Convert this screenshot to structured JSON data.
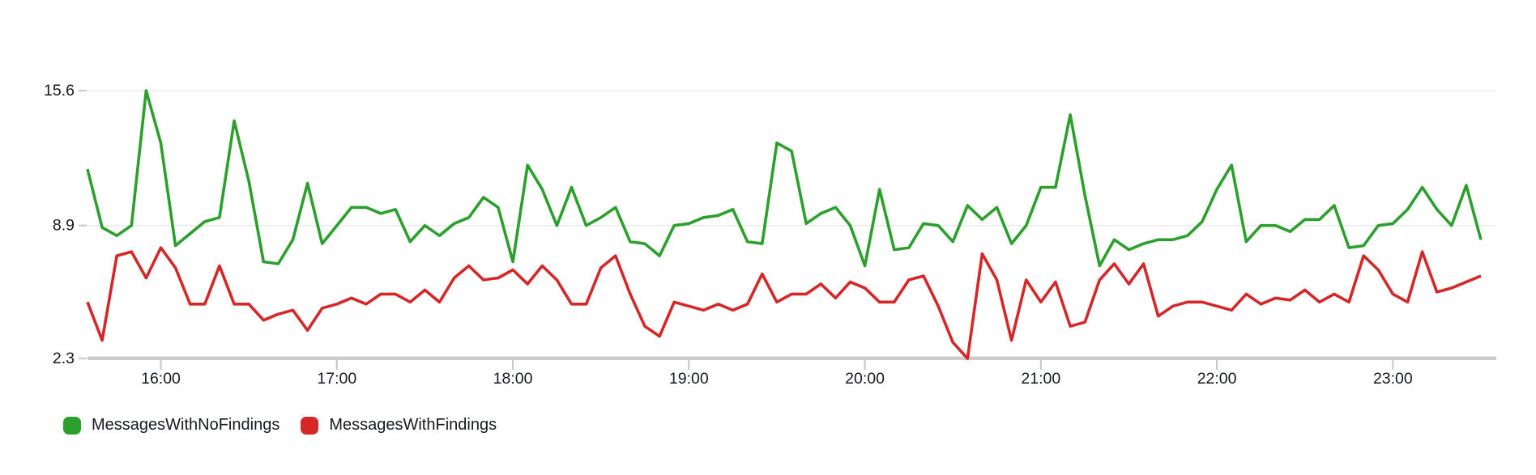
{
  "chart_data": {
    "type": "line",
    "title": "",
    "grid": "horizontal-only",
    "legend_position": "bottom-left",
    "x_axis": {
      "start_time": "15:35",
      "interval_minutes": 5,
      "point_count": 96,
      "tick_labels": [
        "16:00",
        "17:00",
        "18:00",
        "19:00",
        "20:00",
        "21:00",
        "22:00",
        "23:00"
      ]
    },
    "y_axis": {
      "min": 2.3,
      "mid": 8.9,
      "max": 15.6,
      "tick_labels": [
        "15.6",
        "8.9",
        "2.3"
      ]
    },
    "series": [
      {
        "name": "MessagesWithNoFindings",
        "color": "#2ca02c",
        "values": [
          11.7,
          8.8,
          8.4,
          8.9,
          15.6,
          13.0,
          7.9,
          8.5,
          9.1,
          9.3,
          14.1,
          11.1,
          7.1,
          7.0,
          8.2,
          11.0,
          8.0,
          8.9,
          9.8,
          9.8,
          9.5,
          9.7,
          8.1,
          8.9,
          8.4,
          9.0,
          9.3,
          10.3,
          9.8,
          7.1,
          11.9,
          10.7,
          8.9,
          10.8,
          8.9,
          9.3,
          9.8,
          8.1,
          8.0,
          7.4,
          8.9,
          9.0,
          9.3,
          9.4,
          9.7,
          8.1,
          8.0,
          13.0,
          12.6,
          9.0,
          9.5,
          9.8,
          8.9,
          6.9,
          10.7,
          7.7,
          7.8,
          9.0,
          8.9,
          8.1,
          9.9,
          9.2,
          9.8,
          8.0,
          8.9,
          10.8,
          10.8,
          14.4,
          10.4,
          6.9,
          8.2,
          7.7,
          8.0,
          8.2,
          8.2,
          8.4,
          9.1,
          10.7,
          11.9,
          8.1,
          8.9,
          8.9,
          8.6,
          9.2,
          9.2,
          9.9,
          7.8,
          7.9,
          8.9,
          9.0,
          9.7,
          10.8,
          9.7,
          8.9,
          10.9,
          8.2
        ]
      },
      {
        "name": "MessagesWithFindings",
        "color": "#d62728",
        "values": [
          5.1,
          3.2,
          7.4,
          7.6,
          6.3,
          7.8,
          6.8,
          5.0,
          5.0,
          6.9,
          5.0,
          5.0,
          4.2,
          4.5,
          4.7,
          3.7,
          4.8,
          5.0,
          5.3,
          5.0,
          5.5,
          5.5,
          5.1,
          5.7,
          5.1,
          6.3,
          6.9,
          6.2,
          6.3,
          6.7,
          6.0,
          6.9,
          6.2,
          5.0,
          5.0,
          6.8,
          7.4,
          5.5,
          3.9,
          3.4,
          5.1,
          4.9,
          4.7,
          5.0,
          4.7,
          5.0,
          6.5,
          5.1,
          5.5,
          5.5,
          6.0,
          5.3,
          6.1,
          5.8,
          5.1,
          5.1,
          6.2,
          6.4,
          4.9,
          3.1,
          2.3,
          7.5,
          6.2,
          3.2,
          6.2,
          5.1,
          6.1,
          3.9,
          4.1,
          6.2,
          7.0,
          6.0,
          7.0,
          4.4,
          4.9,
          5.1,
          5.1,
          4.9,
          4.7,
          5.5,
          5.0,
          5.3,
          5.2,
          5.7,
          5.1,
          5.5,
          5.1,
          7.4,
          6.7,
          5.5,
          5.1,
          7.6,
          5.6,
          5.8,
          6.1,
          6.4
        ]
      }
    ]
  },
  "colors": {
    "background": "#ffffff",
    "grid_line": "#ebebeb",
    "axis_line": "#cccccc",
    "tick_mark": "#c6c6c6",
    "tick_text": "#16191f"
  }
}
